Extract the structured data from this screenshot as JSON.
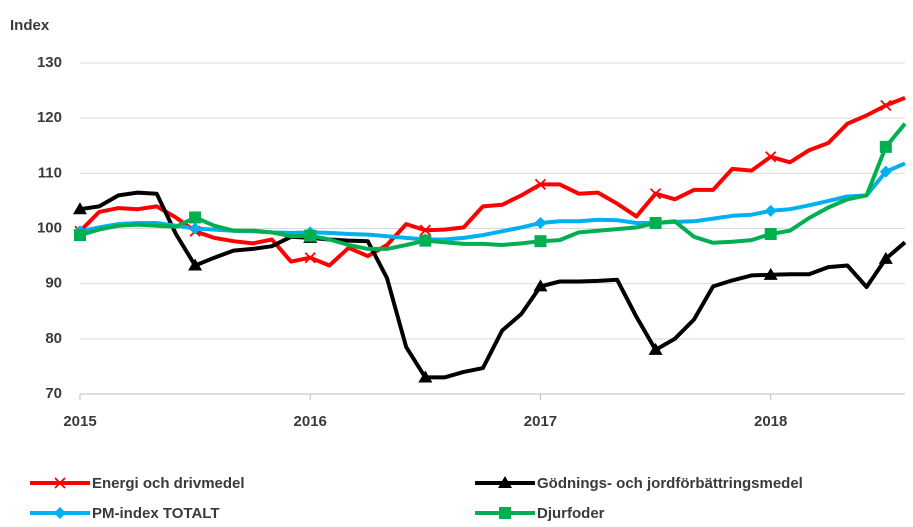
{
  "chart_data": {
    "type": "line",
    "y_label": "Index",
    "categories": [
      "2015",
      null,
      null,
      null,
      null,
      null,
      null,
      null,
      null,
      null,
      null,
      null,
      "2016",
      null,
      null,
      null,
      null,
      null,
      null,
      null,
      null,
      null,
      null,
      null,
      "2017",
      null,
      null,
      null,
      null,
      null,
      null,
      null,
      null,
      null,
      null,
      null,
      "2018",
      null,
      null,
      null,
      null,
      null,
      null,
      null
    ],
    "ylim": [
      70,
      130
    ],
    "yticks": [
      70,
      80,
      90,
      100,
      110,
      120,
      130
    ],
    "grid": true,
    "legend": "bottom",
    "marker_every": 6,
    "series": [
      {
        "name": "Energi och drivmedel",
        "color": "#ff0000",
        "marker": "x",
        "values": [
          99.5,
          103,
          103.7,
          103.5,
          104,
          102,
          99.5,
          98.3,
          97.7,
          97.3,
          98,
          94,
          94.7,
          93.3,
          96.5,
          95,
          97,
          100.8,
          99.7,
          99.8,
          100.2,
          104,
          104.3,
          106,
          108,
          108,
          106.3,
          106.5,
          104.5,
          102.2,
          106.3,
          105.3,
          107,
          107,
          110.8,
          110.5,
          113,
          112,
          114.2,
          115.5,
          119,
          120.5,
          122.3,
          123.7
        ]
      },
      {
        "name": "Gödnings- och jordförbättringsmedel",
        "color": "#000000",
        "marker": "triangle",
        "values": [
          103.5,
          104,
          106,
          106.5,
          106.3,
          99,
          93.3,
          94.7,
          96,
          96.3,
          96.8,
          98.5,
          98.3,
          98,
          97.8,
          97.7,
          91,
          78.5,
          73,
          73,
          74,
          74.7,
          81.5,
          84.5,
          89.5,
          90.4,
          90.4,
          90.5,
          90.7,
          84,
          78,
          80,
          83.5,
          89.5,
          90.6,
          91.5,
          91.6,
          91.7,
          91.7,
          93,
          93.3,
          89.4,
          94.5,
          97.5
        ]
      },
      {
        "name": "PM-index TOTALT",
        "color": "#00b0f0",
        "marker": "diamond",
        "values": [
          99.5,
          100.2,
          100.8,
          101,
          101,
          100.5,
          100,
          99.8,
          99.6,
          99.5,
          99.3,
          99.2,
          99.3,
          99.2,
          99,
          98.9,
          98.6,
          98.3,
          98,
          98,
          98.3,
          98.8,
          99.5,
          100.2,
          101,
          101.3,
          101.3,
          101.6,
          101.5,
          101,
          101,
          101.2,
          101.3,
          101.8,
          102.3,
          102.5,
          103.2,
          103.5,
          104.2,
          105,
          105.8,
          106,
          110.3,
          111.8
        ]
      },
      {
        "name": "Djurfoder",
        "color": "#00b050",
        "marker": "square",
        "values": [
          98.8,
          99.8,
          100.5,
          100.7,
          100.5,
          100.3,
          102,
          100.5,
          99.6,
          99.6,
          99.3,
          98.6,
          98.7,
          98,
          97,
          96.3,
          96.3,
          97,
          97.8,
          97.5,
          97.2,
          97.2,
          97,
          97.3,
          97.7,
          97.9,
          99.3,
          99.6,
          99.9,
          100.2,
          101,
          101.3,
          98.5,
          97.4,
          97.6,
          97.9,
          99,
          99.6,
          101.9,
          103.8,
          105.3,
          106,
          114.8,
          119
        ]
      }
    ]
  }
}
